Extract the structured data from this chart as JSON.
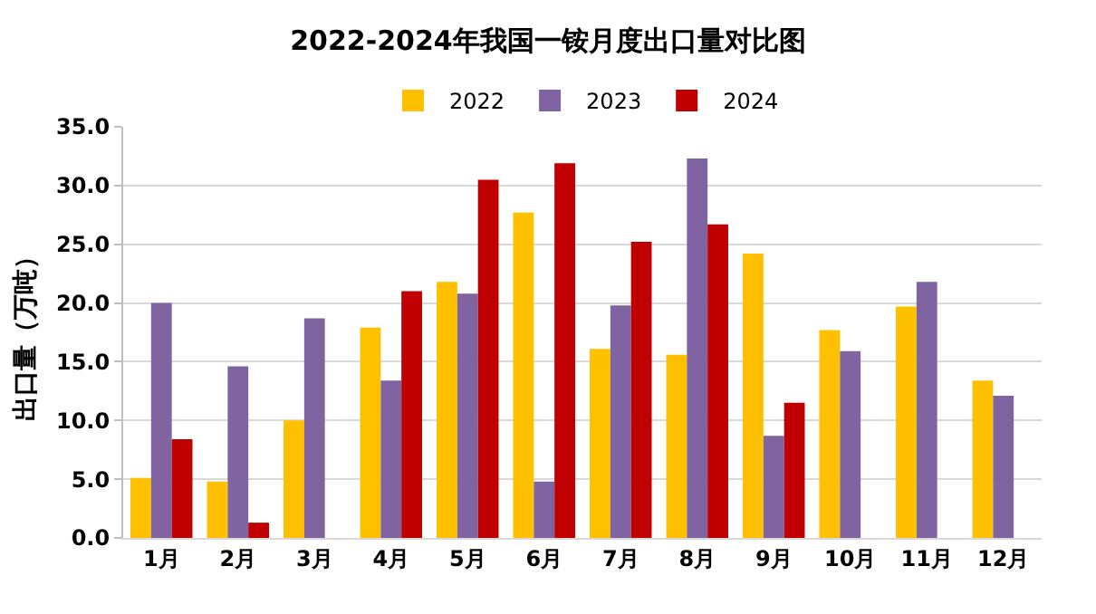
{
  "chart_data": {
    "type": "bar",
    "title": "2022-2024年我国一铵月度出口量对比图",
    "ylabel": "出口量（万吨）",
    "categories": [
      "1月",
      "2月",
      "3月",
      "4月",
      "5月",
      "6月",
      "7月",
      "8月",
      "9月",
      "10月",
      "11月",
      "12月"
    ],
    "series": [
      {
        "name": "2022",
        "color": "#ffc000",
        "values": [
          5.1,
          4.8,
          10.0,
          17.9,
          21.8,
          27.7,
          16.1,
          15.6,
          24.2,
          17.7,
          19.7,
          13.4
        ]
      },
      {
        "name": "2023",
        "color": "#8064a2",
        "values": [
          20.0,
          14.6,
          18.7,
          13.4,
          20.8,
          4.8,
          19.8,
          32.3,
          8.7,
          15.9,
          21.8,
          12.1
        ]
      },
      {
        "name": "2024",
        "color": "#c00000",
        "values": [
          8.4,
          1.3,
          null,
          21.0,
          30.5,
          31.9,
          25.2,
          26.7,
          11.5,
          null,
          null,
          null
        ]
      }
    ],
    "ylim": [
      0,
      35
    ],
    "yticks": [
      {
        "value": 0,
        "label": "0.0"
      },
      {
        "value": 5,
        "label": "5.0"
      },
      {
        "value": 10,
        "label": "10.0"
      },
      {
        "value": 15,
        "label": "15.0"
      },
      {
        "value": 20,
        "label": "20.0"
      },
      {
        "value": 25,
        "label": "25.0"
      },
      {
        "value": 30,
        "label": "30.0"
      },
      {
        "value": 35,
        "label": "35.0"
      }
    ],
    "grid": "y",
    "legend": "top"
  }
}
